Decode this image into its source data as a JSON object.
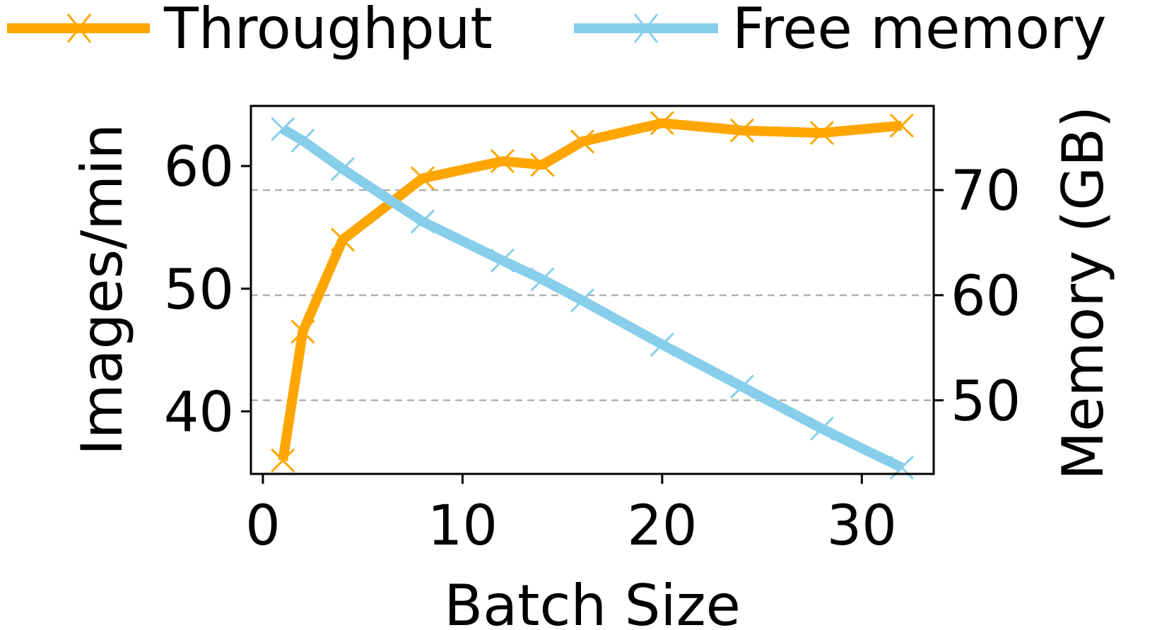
{
  "chart_data": {
    "type": "line",
    "xlabel": "Batch Size",
    "ylabel_left": "Images/min",
    "ylabel_right": "Memory (GB)",
    "xlim": [
      -0.6,
      33.6
    ],
    "xticks": [
      0,
      10,
      20,
      30
    ],
    "ylim_left": [
      34.9,
      64.9
    ],
    "yticks_left": [
      40,
      50,
      60
    ],
    "ylim_right": [
      43.0,
      78.0
    ],
    "yticks_right": [
      50,
      60,
      70
    ],
    "grid": "horizontal dashed at right-axis ticks",
    "legend_position": "top",
    "series": [
      {
        "name": "Throughput",
        "color": "#FFA500",
        "axis": "left",
        "marker": "x",
        "x": [
          1,
          2,
          4,
          8,
          12,
          14,
          16,
          20,
          24,
          28,
          32
        ],
        "y": [
          36.0,
          46.5,
          54.0,
          59.0,
          60.4,
          60.1,
          62.0,
          63.5,
          62.9,
          62.7,
          63.3
        ]
      },
      {
        "name": "Free memory",
        "color": "#87CEEB",
        "axis": "right",
        "marker": "x",
        "x": [
          1,
          2,
          4,
          8,
          12,
          14,
          16,
          20,
          24,
          28,
          32
        ],
        "y": [
          75.8,
          74.7,
          72.0,
          67.0,
          63.3,
          61.5,
          59.5,
          55.3,
          51.3,
          47.3,
          43.6
        ]
      }
    ]
  }
}
